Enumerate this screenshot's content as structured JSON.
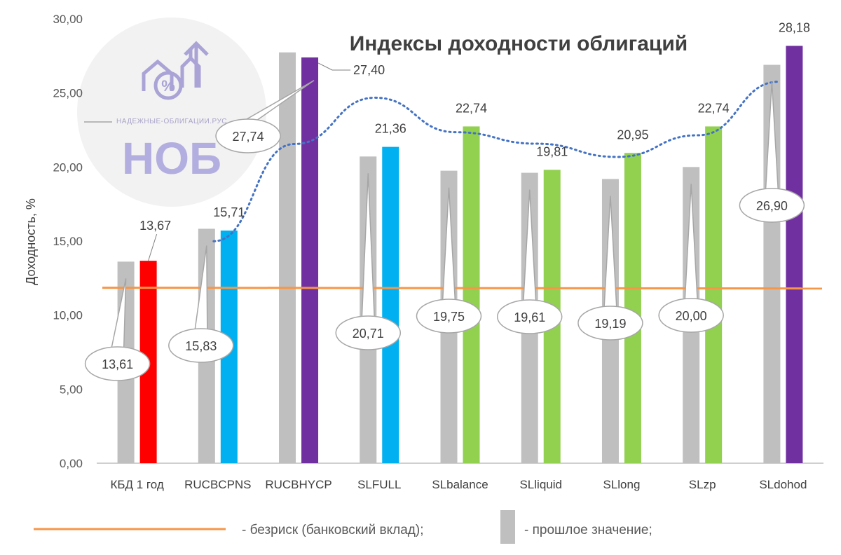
{
  "chart_data": {
    "type": "bar",
    "title": "Индексы доходности облигаций",
    "ylabel": "Доходность, %",
    "ylim": [
      0,
      30
    ],
    "yticks": [
      "0,00",
      "5,00",
      "10,00",
      "15,00",
      "20,00",
      "25,00",
      "30,00"
    ],
    "categories": [
      "КБД 1 год",
      "RUCBCPNS",
      "RUCBHYCP",
      "SLFULL",
      "SLbalance",
      "SLliquid",
      "SLlong",
      "SLzp",
      "SLdohod"
    ],
    "series": [
      {
        "role": "previous",
        "values": [
          13.61,
          15.83,
          27.74,
          20.71,
          19.75,
          19.61,
          19.19,
          20.0,
          26.9
        ],
        "labels": [
          "13,61",
          "15,83",
          "27,74",
          "20,71",
          "19,75",
          "19,61",
          "19,19",
          "20,00",
          "26,90"
        ],
        "color": "#bfbfbf"
      },
      {
        "role": "current",
        "values": [
          13.67,
          15.71,
          27.4,
          21.36,
          22.74,
          19.81,
          20.95,
          22.74,
          28.18
        ],
        "labels": [
          "13,67",
          "15,71",
          "27,40",
          "21,36",
          "22,74",
          "19,81",
          "20,95",
          "22,74",
          "28,18"
        ],
        "colors": [
          "#ff0000",
          "#00b0f0",
          "#7030a0",
          "#00b0f0",
          "#92d050",
          "#92d050",
          "#92d050",
          "#92d050",
          "#7030a0"
        ]
      }
    ],
    "risk_free_line": {
      "start": 11.85,
      "end": 11.8,
      "color": "#f79646"
    },
    "trend_line": {
      "style": "dotted",
      "color": "#4472c4"
    },
    "grid": false
  },
  "legend": {
    "risk_free_label": "- безриск (банковский вклад);",
    "previous_label": "- прошлое значение;"
  },
  "logo": {
    "small_text": "НАДЕЖНЫЕ-ОБЛИГАЦИИ.РУС",
    "big_text": "НОБ"
  }
}
